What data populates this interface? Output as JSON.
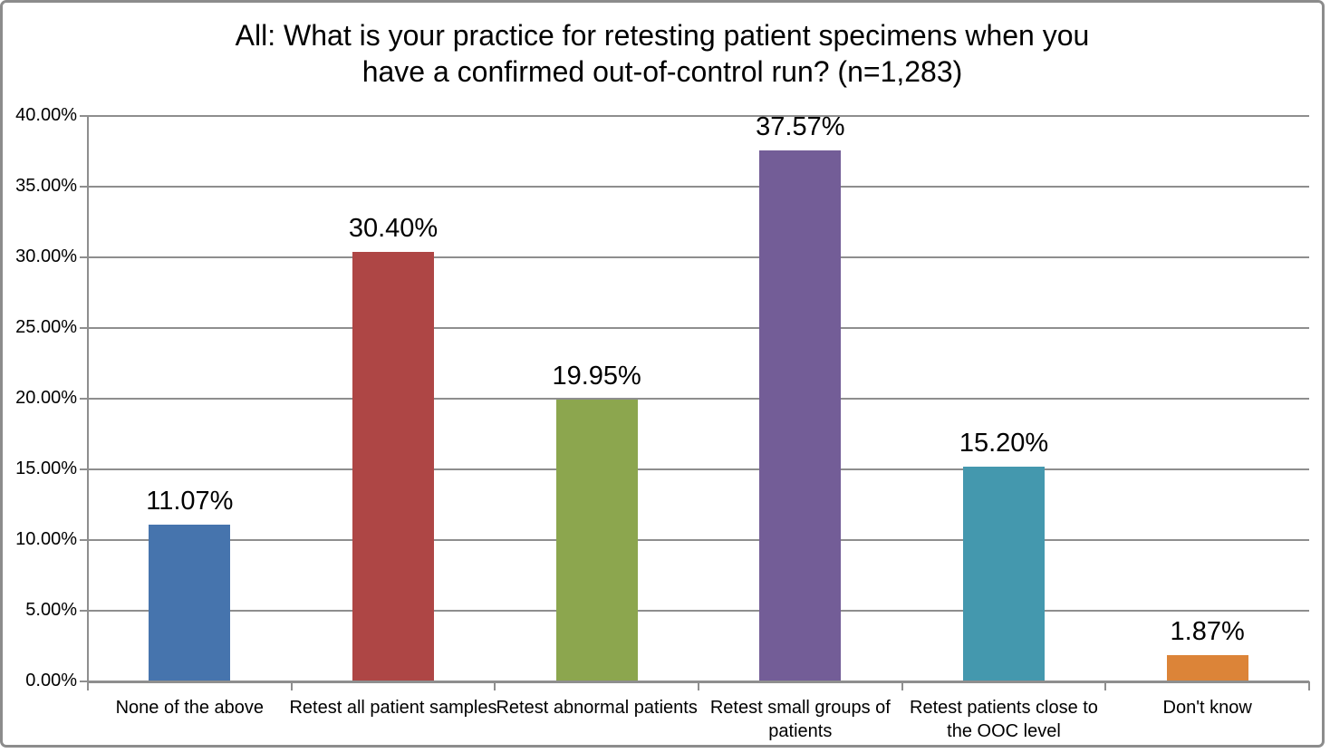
{
  "frame": {
    "border_color": "#8c8c8c",
    "background": "#ffffff"
  },
  "chart_data": {
    "type": "bar",
    "title": "All: What is your practice for retesting patient specimens when you have a confirmed out-of-control run? (n=1,283)",
    "title_display": "All: What is your practice for retesting patient specimens when you\nhave a confirmed out-of-control run? (n=1,283)",
    "n": "1,283",
    "categories": [
      "None of the above",
      "Retest all patient samples",
      "Retest abnormal patients",
      "Retest small groups of patients",
      "Retest patients close to the OOC level",
      "Don't know"
    ],
    "categories_display": [
      "None of the above",
      "Retest all patient samples",
      "Retest abnormal patients",
      "Retest small groups of\npatients",
      "Retest patients close to\nthe OOC level",
      "Don't know"
    ],
    "values": [
      11.07,
      30.4,
      19.95,
      37.57,
      15.2,
      1.87
    ],
    "value_labels": [
      "11.07%",
      "30.40%",
      "19.95%",
      "37.57%",
      "15.20%",
      "1.87%"
    ],
    "bar_colors": [
      "#4674AD",
      "#AE4645",
      "#8CA64E",
      "#735D97",
      "#4498AE",
      "#DC8438"
    ],
    "xlabel": "",
    "ylabel": "",
    "ylim": [
      0,
      40
    ],
    "ytick_values": [
      0,
      5,
      10,
      15,
      20,
      25,
      30,
      35,
      40
    ],
    "ytick_labels": [
      "0.00%",
      "5.00%",
      "10.00%",
      "15.00%",
      "20.00%",
      "25.00%",
      "30.00%",
      "35.00%",
      "40.00%"
    ],
    "grid": true,
    "legend_position": "none",
    "gridline_color": "#8E8E8E",
    "axis_color": "#8E8E8E",
    "text_color": "#000000"
  }
}
